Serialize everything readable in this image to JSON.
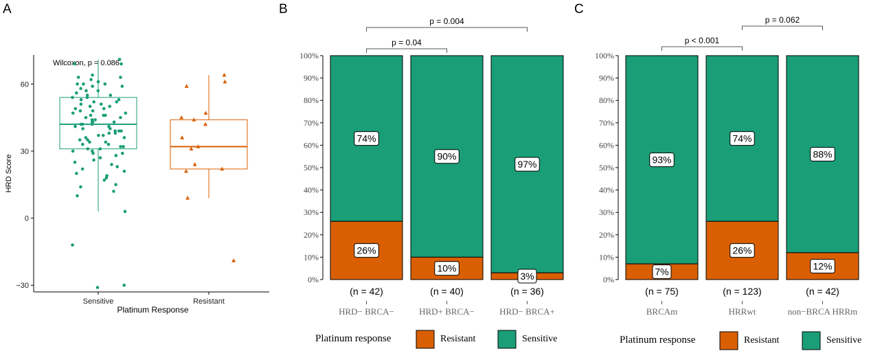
{
  "colors": {
    "sensitive": "#1a9e77",
    "resistant": "#d95f02",
    "axis": "#000000",
    "bracket": "#555555"
  },
  "chart_data": [
    {
      "panel": "A",
      "type": "box",
      "ylabel": "HRD Score",
      "xlabel": "Platinum Response",
      "ylim": [
        -33,
        73
      ],
      "yticks": [
        -30,
        0,
        30,
        60
      ],
      "annotation": "Wilcoxon, p = 0.086",
      "groups": [
        {
          "name": "Sensitive",
          "color_key": "sensitive",
          "marker": "circle",
          "box": {
            "q1": 31,
            "median": 42,
            "q3": 54,
            "lower_whisker": 3,
            "upper_whisker": 71
          },
          "points": [
            71,
            69,
            69,
            64,
            63,
            63,
            62,
            61,
            60,
            60,
            60,
            59,
            59,
            58,
            57,
            57,
            56,
            55,
            55,
            54,
            54,
            53,
            53,
            52,
            52,
            51,
            51,
            50,
            50,
            49,
            49,
            48,
            48,
            47,
            47,
            46,
            46,
            46,
            45,
            45,
            44,
            44,
            43,
            43,
            43,
            42,
            42,
            42,
            41,
            41,
            40,
            40,
            39,
            39,
            39,
            38,
            38,
            37,
            37,
            36,
            36,
            35,
            35,
            34,
            34,
            33,
            33,
            32,
            32,
            31,
            31,
            30,
            30,
            29,
            29,
            28,
            27,
            26,
            25,
            24,
            23,
            22,
            21,
            20,
            19,
            18,
            17,
            15,
            14,
            12,
            10,
            3,
            -12,
            -30,
            -31
          ]
        },
        {
          "name": "Resistant",
          "color_key": "resistant",
          "marker": "triangle",
          "box": {
            "q1": 22,
            "median": 32,
            "q3": 44,
            "lower_whisker": 9,
            "upper_whisker": 64
          },
          "points": [
            64,
            61,
            59,
            47,
            45,
            44,
            42,
            36,
            32,
            31,
            24,
            22,
            21,
            9,
            -19
          ]
        }
      ]
    },
    {
      "panel": "B",
      "type": "stacked-bar",
      "yticks": [
        "0%",
        "10%",
        "20%",
        "30%",
        "40%",
        "50%",
        "60%",
        "70%",
        "80%",
        "90%",
        "100%"
      ],
      "categories": [
        "HRD− BRCA−",
        "HRD+ BRCA−",
        "HRD− BRCA+"
      ],
      "n_labels": [
        "(n = 42)",
        "(n = 40)",
        "(n = 36)"
      ],
      "series": [
        {
          "name": "Resistant",
          "color_key": "resistant",
          "values": [
            26,
            10,
            3
          ],
          "labels": [
            "26%",
            "10%",
            "3%"
          ]
        },
        {
          "name": "Sensitive",
          "color_key": "sensitive",
          "values": [
            74,
            90,
            97
          ],
          "labels": [
            "74%",
            "90%",
            "97%"
          ]
        }
      ],
      "comparisons": [
        {
          "from": 0,
          "to": 2,
          "label": "p = 0.004",
          "level": 2
        },
        {
          "from": 0,
          "to": 1,
          "label": "p = 0.04",
          "level": 1
        }
      ],
      "legend": {
        "title": "Platinum response",
        "items": [
          "Resistant",
          "Sensitive"
        ]
      }
    },
    {
      "panel": "C",
      "type": "stacked-bar",
      "yticks": [
        "0%",
        "10%",
        "20%",
        "30%",
        "40%",
        "50%",
        "60%",
        "70%",
        "80%",
        "90%",
        "100%"
      ],
      "categories": [
        "BRCAm",
        "HRRwt",
        "non−BRCA HRRm"
      ],
      "n_labels": [
        "(n = 75)",
        "(n = 123)",
        "(n = 42)"
      ],
      "series": [
        {
          "name": "Resistant",
          "color_key": "resistant",
          "values": [
            7,
            26,
            12
          ],
          "labels": [
            "7%",
            "26%",
            "12%"
          ]
        },
        {
          "name": "Sensitive",
          "color_key": "sensitive",
          "values": [
            93,
            74,
            88
          ],
          "labels": [
            "93%",
            "74%",
            "88%"
          ]
        }
      ],
      "comparisons": [
        {
          "from": 0,
          "to": 1,
          "label": "p < 0.001",
          "level": 1
        },
        {
          "from": 1,
          "to": 2,
          "label": "p = 0.062",
          "level": 2
        }
      ],
      "legend": {
        "title": "Platinum response",
        "items": [
          "Resistant",
          "Sensitive"
        ]
      }
    }
  ]
}
